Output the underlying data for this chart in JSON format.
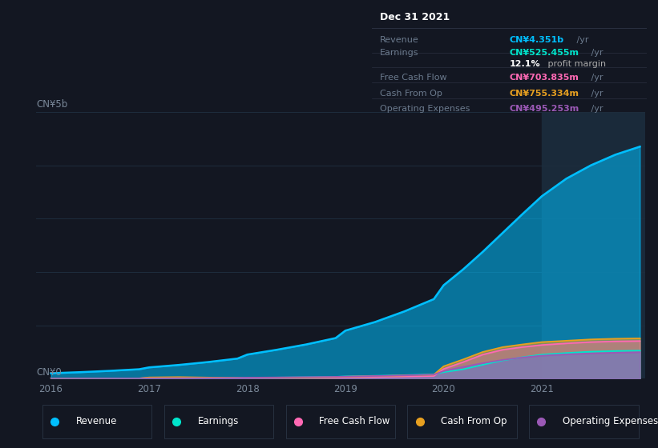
{
  "bg_color": "#131722",
  "plot_bg_color": "#131722",
  "grid_color": "#1e2d3d",
  "highlight_color": "#1a2a3a",
  "years": [
    2016.0,
    2016.3,
    2016.6,
    2016.9,
    2017.0,
    2017.3,
    2017.6,
    2017.9,
    2018.0,
    2018.3,
    2018.6,
    2018.9,
    2019.0,
    2019.3,
    2019.6,
    2019.9,
    2020.0,
    2020.2,
    2020.4,
    2020.6,
    2020.8,
    2021.0,
    2021.25,
    2021.5,
    2021.75,
    2022.0
  ],
  "revenue": [
    100,
    120,
    145,
    175,
    210,
    255,
    310,
    375,
    450,
    540,
    640,
    760,
    900,
    1060,
    1260,
    1490,
    1750,
    2050,
    2380,
    2730,
    3080,
    3420,
    3750,
    4000,
    4200,
    4351
  ],
  "earnings": [
    2,
    3,
    4,
    5,
    6,
    8,
    10,
    13,
    16,
    20,
    26,
    33,
    42,
    52,
    65,
    80,
    120,
    175,
    260,
    340,
    400,
    450,
    480,
    505,
    518,
    525
  ],
  "free_cash_flow": [
    1,
    2,
    2,
    3,
    15,
    18,
    12,
    8,
    5,
    8,
    12,
    17,
    22,
    28,
    37,
    47,
    180,
    310,
    450,
    540,
    590,
    630,
    660,
    685,
    698,
    704
  ],
  "cash_from_op": [
    2,
    3,
    4,
    5,
    22,
    28,
    20,
    12,
    8,
    12,
    18,
    25,
    35,
    45,
    58,
    72,
    230,
    360,
    500,
    590,
    640,
    685,
    710,
    735,
    748,
    755
  ],
  "operating_expenses": [
    1,
    2,
    3,
    4,
    6,
    8,
    10,
    13,
    18,
    22,
    28,
    33,
    38,
    48,
    60,
    74,
    140,
    220,
    290,
    350,
    395,
    430,
    455,
    472,
    485,
    495
  ],
  "revenue_color": "#00bfff",
  "earnings_color": "#00e5cc",
  "free_cash_flow_color": "#ff69b4",
  "cash_from_op_color": "#e8a020",
  "operating_expenses_color": "#9b59b6",
  "revenue_fill_alpha": 0.55,
  "highlight_x_start": 2021.0,
  "highlight_x_end": 2022.05,
  "ylim_max": 5000,
  "xlim_min": 2015.85,
  "xlim_max": 2022.05,
  "ytick_values": [
    0,
    1000,
    2000,
    3000,
    4000,
    5000
  ],
  "ytick_labels_top": "CN¥5b",
  "ytick_label_bottom": "CN¥0",
  "xtick_values": [
    2016,
    2017,
    2018,
    2019,
    2020,
    2021
  ],
  "info_box_bg": "#0d1117",
  "info_box_border": "#2a3040",
  "info_box_title": "Dec 31 2021",
  "info_box_rows": [
    {
      "label": "Revenue",
      "value": "CN¥4.351b",
      "suffix": " /yr",
      "color": "#00bfff"
    },
    {
      "label": "Earnings",
      "value": "CN¥525.455m",
      "suffix": " /yr",
      "color": "#00e5cc"
    },
    {
      "label": "",
      "value": "12.1%",
      "suffix": " profit margin",
      "color": "#ffffff",
      "suffix_color": "#aaaaaa"
    },
    {
      "label": "Free Cash Flow",
      "value": "CN¥703.835m",
      "suffix": " /yr",
      "color": "#ff69b4"
    },
    {
      "label": "Cash From Op",
      "value": "CN¥755.334m",
      "suffix": " /yr",
      "color": "#e8a020"
    },
    {
      "label": "Operating Expenses",
      "value": "CN¥495.253m",
      "suffix": " /yr",
      "color": "#9b59b6"
    }
  ],
  "legend_items": [
    {
      "label": "Revenue",
      "color": "#00bfff"
    },
    {
      "label": "Earnings",
      "color": "#00e5cc"
    },
    {
      "label": "Free Cash Flow",
      "color": "#ff69b4"
    },
    {
      "label": "Cash From Op",
      "color": "#e8a020"
    },
    {
      "label": "Operating Expenses",
      "color": "#9b59b6"
    }
  ]
}
